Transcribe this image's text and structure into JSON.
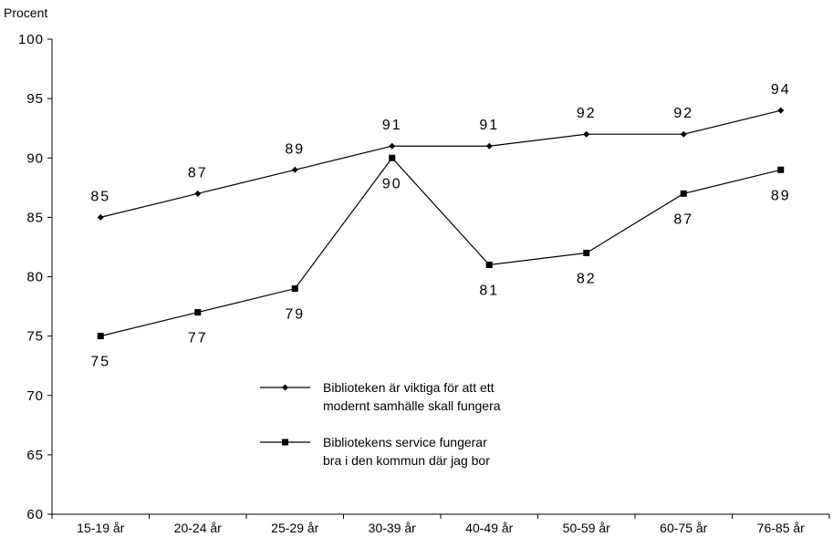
{
  "chart_data": {
    "type": "line",
    "ylabel": "Procent",
    "xlabel": "",
    "ylim": [
      60,
      100
    ],
    "yticks": [
      60,
      65,
      70,
      75,
      80,
      85,
      90,
      95,
      100
    ],
    "categories": [
      "15-19 år",
      "20-24 år",
      "25-29 år",
      "30-39 år",
      "40-49 år",
      "50-59 år",
      "60-75 år",
      "76-85 år"
    ],
    "grid": false,
    "legend_position": "center",
    "series": [
      {
        "name": "Biblioteken är viktiga för att ett modernt samhälle skall fungera",
        "legend_lines": [
          "Biblioteken är viktiga för att ett",
          "modernt samhälle skall fungera"
        ],
        "marker": "diamond",
        "label_position": "above",
        "values": [
          85,
          87,
          89,
          91,
          91,
          92,
          92,
          94
        ]
      },
      {
        "name": "Bibliotekens service fungerar bra i den kommun där jag bor",
        "legend_lines": [
          "Bibliotekens service fungerar",
          "bra i den kommun där jag bor"
        ],
        "marker": "square",
        "label_position": "below",
        "values": [
          75,
          77,
          79,
          90,
          81,
          82,
          87,
          89
        ]
      }
    ],
    "colors": {
      "line": "#000000",
      "background": "#ffffff"
    }
  }
}
